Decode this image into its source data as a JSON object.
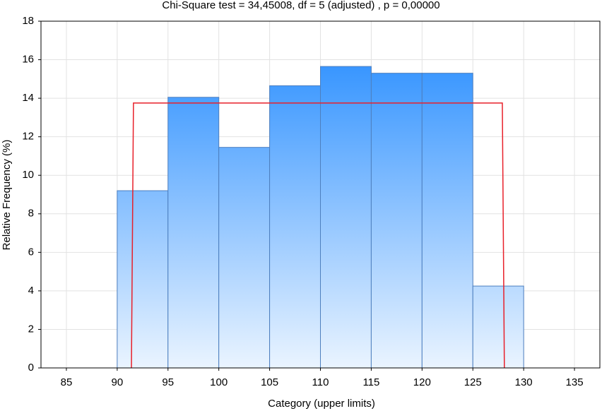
{
  "chart_data": {
    "type": "histogram",
    "title": "Chi-Square test = 34,45008, df = 5 (adjusted) , p = 0,00000",
    "xlabel": "Category (upper limits)",
    "ylabel": "Relative Frequency (%)",
    "bins": [
      90,
      95,
      100,
      105,
      110,
      115,
      120,
      125,
      130
    ],
    "counts": [
      9.2,
      14.05,
      11.45,
      14.65,
      15.65,
      15.3,
      15.3,
      4.25
    ],
    "color": "#1e88ff",
    "fit": {
      "color": "#e8202a",
      "x": [
        91.4,
        91.6,
        127.9,
        128.1
      ],
      "values": [
        0,
        13.75,
        13.75,
        0
      ]
    },
    "xlim": [
      82.5,
      137.5
    ],
    "xticks": [
      85,
      90,
      95,
      100,
      105,
      110,
      115,
      120,
      125,
      130,
      135
    ],
    "ylim": [
      0,
      18
    ],
    "yticks": [
      0,
      2,
      4,
      6,
      8,
      10,
      12,
      14,
      16,
      18
    ],
    "grid": true
  }
}
